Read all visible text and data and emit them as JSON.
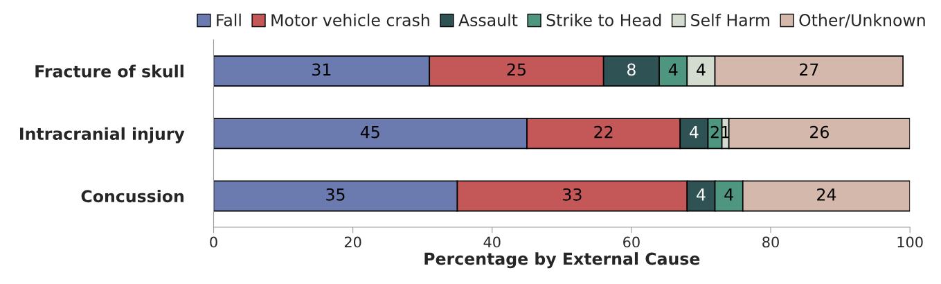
{
  "chart_data": {
    "type": "bar",
    "orientation": "horizontal",
    "stacked": true,
    "xlabel": "Percentage by External Cause",
    "categories": [
      "Fracture of skull",
      "Intracranial injury",
      "Concussion"
    ],
    "series": [
      {
        "name": "Fall",
        "color": "#6b7bb0",
        "values": [
          31,
          45,
          35
        ]
      },
      {
        "name": "Motor vehicle crash",
        "color": "#c45858",
        "values": [
          25,
          22,
          33
        ]
      },
      {
        "name": "Assault",
        "color": "#2f5254",
        "values": [
          8,
          4,
          4
        ]
      },
      {
        "name": "Strike to Head",
        "color": "#4e9680",
        "values": [
          4,
          2,
          4
        ]
      },
      {
        "name": "Self Harm",
        "color": "#d3dccf",
        "values": [
          4,
          1,
          null
        ]
      },
      {
        "name": "Other/Unknown",
        "color": "#d4b8ab",
        "values": [
          27,
          26,
          24
        ]
      }
    ],
    "xlim": [
      0,
      100
    ],
    "xticks": [
      0,
      20,
      40,
      60,
      80,
      100
    ],
    "data_labels": true,
    "legend": "top",
    "grid": false
  }
}
